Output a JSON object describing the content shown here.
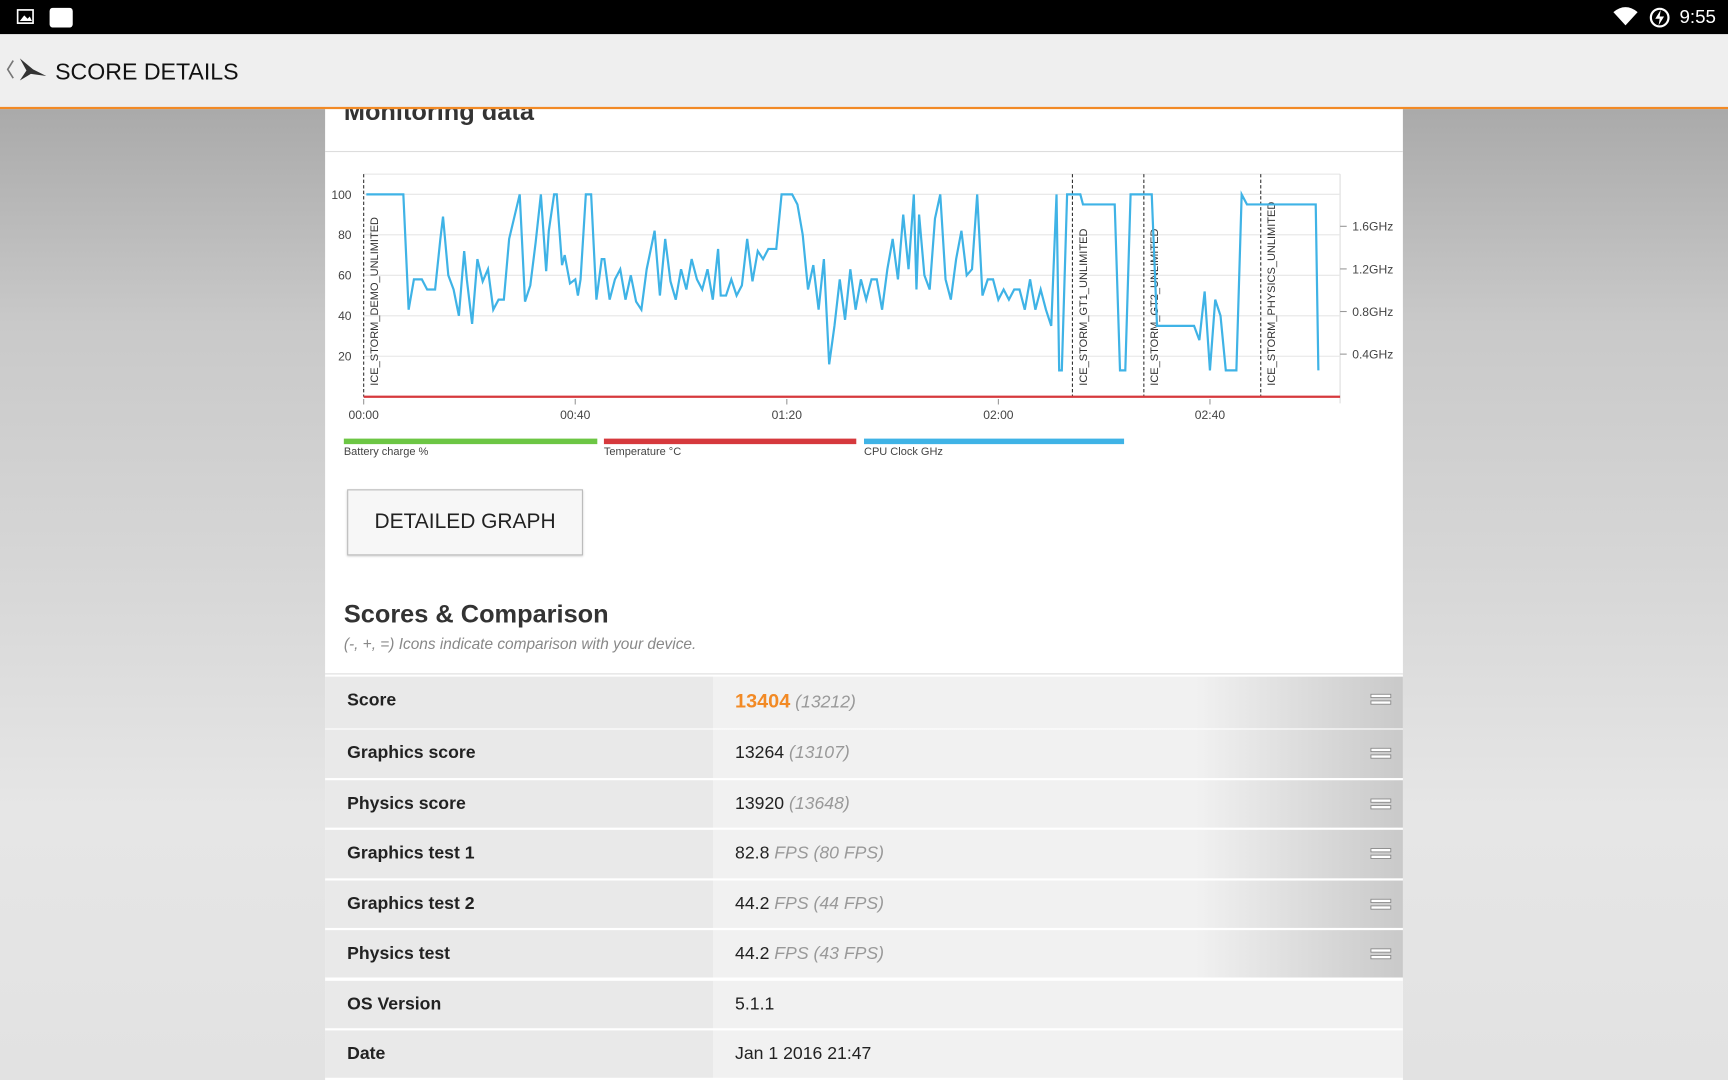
{
  "status_bar": {
    "time": "9:55"
  },
  "app_bar": {
    "title": "SCORE DETAILS"
  },
  "monitoring": {
    "title": "Monitoring data"
  },
  "chart_data": {
    "type": "line",
    "xlim": [
      0,
      184.6
    ],
    "xticks": [
      {
        "value": 0,
        "label": "00:00"
      },
      {
        "value": 40,
        "label": "00:40"
      },
      {
        "value": 80,
        "label": "01:20"
      },
      {
        "value": 120,
        "label": "02:00"
      },
      {
        "value": 160,
        "label": "02:40"
      }
    ],
    "ylim": [
      0,
      110
    ],
    "yticks": [
      20,
      40,
      60,
      80,
      100
    ],
    "y2lim": [
      0,
      2.09
    ],
    "y2ticks": [
      {
        "value": 0.4,
        "label": "0.4GHz"
      },
      {
        "value": 0.8,
        "label": "0.8GHz"
      },
      {
        "value": 1.2,
        "label": "1.2GHz"
      },
      {
        "value": 1.6,
        "label": "1.6GHz"
      }
    ],
    "grid": true,
    "markers": [
      {
        "x": 0,
        "label": "ICE_STORM_DEMO_UNLIMITED"
      },
      {
        "x": 134,
        "label": "ICE_STORM_GT1_UNLIMITED"
      },
      {
        "x": 147.5,
        "label": "ICE_STORM_GT2_UNLIMITED"
      },
      {
        "x": 169.6,
        "label": "ICE_STORM_PHYSICS_UNLIMITED"
      }
    ],
    "series": [
      {
        "name": "Battery charge %",
        "color": "#6cc644",
        "x": [],
        "values": []
      },
      {
        "name": "Temperature °C",
        "color": "#d6393d",
        "x": [
          0,
          184.6
        ],
        "values": [
          0,
          0
        ]
      },
      {
        "name": "CPU Clock GHz",
        "color": "#3fb3e6",
        "x": [
          0.5,
          7.5,
          8.5,
          9.5,
          11,
          12,
          13.5,
          14.5,
          15,
          16,
          17,
          18,
          19,
          19.5,
          20.5,
          21.5,
          22.5,
          23.5,
          24.5,
          25.5,
          26.5,
          27.5,
          29.5,
          30.5,
          31.5,
          32.5,
          33.5,
          34.5,
          35,
          36,
          36.5,
          37.5,
          38,
          39,
          40,
          40.5,
          41,
          42,
          43,
          44,
          45,
          45.5,
          46.5,
          47.5,
          48.5,
          49.5,
          50.5,
          51.5,
          52.5,
          53.5,
          55,
          56,
          57,
          58,
          59,
          60,
          61,
          62,
          63,
          64,
          65,
          66,
          67,
          67.5,
          68.5,
          69.5,
          70.5,
          71.5,
          72.5,
          73.5,
          74.5,
          75.5,
          76.5,
          78,
          79,
          81,
          82,
          83,
          84,
          85,
          86,
          87,
          88,
          89,
          90,
          91,
          92,
          93,
          94,
          95,
          96,
          97,
          98,
          99,
          100,
          101,
          102,
          103,
          104,
          104.5,
          105,
          106,
          107,
          108,
          109,
          110,
          111,
          112,
          113,
          114,
          115,
          116,
          117,
          118,
          119,
          120,
          121,
          122,
          123,
          124,
          125,
          126,
          127,
          128,
          129,
          130,
          131,
          131.5,
          132,
          133,
          135.5,
          136,
          142,
          143,
          144,
          145,
          149,
          150,
          157,
          158,
          159,
          160,
          161,
          162,
          163,
          165,
          166,
          167,
          180,
          180.5
        ],
        "values": [
          100,
          100,
          43,
          58,
          58,
          53,
          53,
          78,
          89,
          60,
          53,
          40,
          72,
          58,
          36,
          68,
          57,
          63,
          43,
          48,
          48,
          78,
          100,
          47,
          55,
          76,
          100,
          62,
          82,
          100,
          100,
          65,
          70,
          56,
          58,
          50,
          58,
          100,
          100,
          48,
          68,
          68,
          48,
          58,
          63,
          48,
          60,
          47,
          43,
          63,
          82,
          50,
          78,
          57,
          48,
          63,
          53,
          68,
          58,
          53,
          63,
          48,
          73,
          50,
          50,
          58,
          50,
          55,
          78,
          57,
          72,
          68,
          73,
          73,
          100,
          100,
          95,
          80,
          53,
          65,
          43,
          68,
          16,
          35,
          58,
          38,
          63,
          43,
          58,
          48,
          58,
          58,
          43,
          63,
          78,
          58,
          90,
          63,
          100,
          53,
          90,
          60,
          53,
          88,
          100,
          58,
          48,
          68,
          82,
          60,
          63,
          100,
          50,
          58,
          58,
          48,
          53,
          48,
          53,
          53,
          43,
          58,
          43,
          53,
          43,
          35,
          100,
          13,
          13,
          100,
          100,
          95,
          95,
          13,
          13,
          100,
          100,
          35,
          35,
          28,
          52,
          13,
          48,
          40,
          13,
          13,
          100,
          95,
          95,
          13
        ]
      }
    ]
  },
  "button": {
    "label": "DETAILED GRAPH"
  },
  "scores": {
    "title": "Scores & Comparison",
    "subtitle": "(-, +, =) Icons indicate comparison with your device.",
    "rows": [
      {
        "label": "Score",
        "value": "13404",
        "compare": "(13212)"
      },
      {
        "label": "Graphics score",
        "value": "13264",
        "compare": "(13107)"
      },
      {
        "label": "Physics score",
        "value": "13920",
        "compare": "(13648)"
      },
      {
        "label": "Graphics test 1",
        "value": "82.8",
        "unit": "FPS",
        "compare": "(80 FPS)"
      },
      {
        "label": "Graphics test 2",
        "value": "44.2",
        "unit": "FPS",
        "compare": "(44 FPS)"
      },
      {
        "label": "Physics test",
        "value": "44.2",
        "unit": "FPS",
        "compare": "(43 FPS)"
      },
      {
        "label": "OS Version",
        "value": "5.1.1"
      },
      {
        "label": "Date",
        "value": "Jan 1 2016 21:47"
      }
    ]
  }
}
